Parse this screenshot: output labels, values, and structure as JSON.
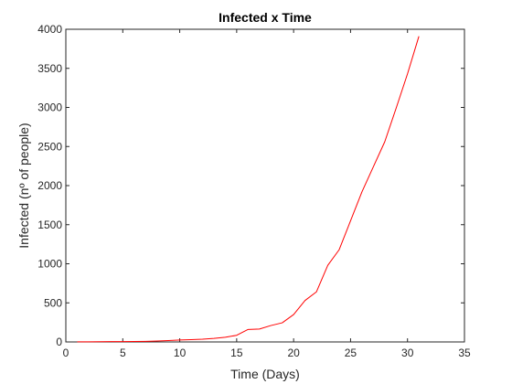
{
  "chart_data": {
    "type": "line",
    "title": "Infected x Time",
    "xlabel": "Time (Days)",
    "ylabel": "Infected (nº of people)",
    "xlim": [
      0,
      35
    ],
    "ylim": [
      0,
      4000
    ],
    "xticks": [
      0,
      5,
      10,
      15,
      20,
      25,
      30,
      35
    ],
    "yticks": [
      0,
      500,
      1000,
      1500,
      2000,
      2500,
      3000,
      3500,
      4000
    ],
    "grid": false,
    "series": [
      {
        "color": "#ff0000",
        "x": [
          1,
          2,
          3,
          4,
          5,
          6,
          7,
          8,
          9,
          10,
          11,
          12,
          13,
          14,
          15,
          16,
          17,
          18,
          19,
          20,
          21,
          22,
          23,
          24,
          25,
          26,
          27,
          28,
          29,
          30,
          31
        ],
        "y": [
          1,
          2,
          3,
          4,
          5,
          6,
          8,
          12,
          18,
          25,
          30,
          35,
          45,
          60,
          85,
          160,
          165,
          210,
          245,
          350,
          530,
          640,
          980,
          1180,
          1550,
          1920,
          2240,
          2560,
          2990,
          3430,
          3910
        ]
      }
    ]
  }
}
